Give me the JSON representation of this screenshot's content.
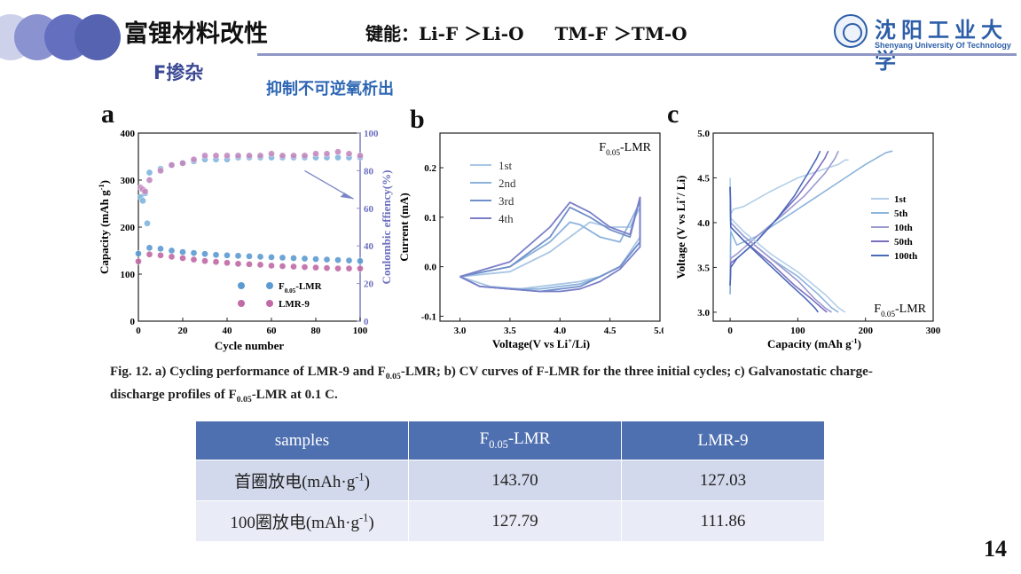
{
  "header": {
    "title": "富锂材料改性",
    "bond_label": "键能：",
    "bond_1": "Li-F ＞Li-O",
    "bond_2": "TM-F ＞TM-O",
    "subtitle": "F掺杂",
    "highlight": "抑制不可逆氧析出",
    "logo_cn": "沈阳工业大学",
    "logo_en": "Shenyang University Of Technology",
    "accent": "#5563b0"
  },
  "figure": {
    "panel_a_label": "a",
    "panel_b_label": "b",
    "panel_c_label": "c",
    "caption_line1": "Fig. 12. a) Cycling performance of LMR-9 and F0.05-LMR; b) CV curves of F-LMR for the three initial cycles; c) Galvanostatic charge-",
    "caption_line2": "discharge profiles of F0.05-LMR at 0.1 C."
  },
  "chart_data": [
    {
      "type": "scatter",
      "panel": "a",
      "xlabel": "Cycle number",
      "ylabel": "Capacity (mAh g-1)",
      "y2label": "Coulombic effiency(%)",
      "xlim": [
        0,
        100
      ],
      "ylim": [
        0,
        400
      ],
      "y2lim": [
        0,
        100
      ],
      "xticks": [
        0,
        20,
        40,
        60,
        80,
        100
      ],
      "yticks": [
        0,
        100,
        200,
        300,
        400
      ],
      "y2ticks": [
        0,
        20,
        40,
        60,
        80,
        100
      ],
      "legend_position": "bottom-right",
      "series": [
        {
          "name": "F0.05-LMR",
          "axis": "capacity",
          "color": "#5b9bd1",
          "x": [
            0,
            5,
            10,
            15,
            20,
            25,
            30,
            35,
            40,
            45,
            50,
            55,
            60,
            65,
            70,
            75,
            80,
            85,
            90,
            95,
            100
          ],
          "values": [
            143.7,
            156,
            154,
            150,
            147,
            145,
            143,
            141,
            140,
            139,
            138,
            137,
            136,
            135,
            134,
            133,
            132,
            131,
            130,
            129,
            127.79
          ]
        },
        {
          "name": "LMR-9",
          "axis": "capacity",
          "color": "#c06aa6",
          "x": [
            0,
            5,
            10,
            15,
            20,
            25,
            30,
            35,
            40,
            45,
            50,
            55,
            60,
            65,
            70,
            75,
            80,
            85,
            90,
            95,
            100
          ],
          "values": [
            127.03,
            142,
            140,
            137,
            134,
            131,
            128,
            126,
            124,
            122,
            121,
            120,
            118,
            117,
            116,
            115,
            114,
            113,
            112,
            112,
            111.86
          ]
        },
        {
          "name": "F0.05-LMR CE",
          "axis": "efficiency",
          "color": "#7fb5de",
          "x": [
            1,
            2,
            3,
            4,
            5,
            10,
            15,
            20,
            25,
            30,
            35,
            40,
            45,
            50,
            55,
            60,
            65,
            70,
            75,
            80,
            85,
            90,
            95,
            100
          ],
          "values": [
            66,
            64,
            68,
            52,
            79,
            81,
            83,
            84,
            85,
            86,
            86,
            86,
            87,
            87,
            87,
            87,
            87,
            87,
            87,
            87,
            87,
            87,
            87,
            87
          ]
        },
        {
          "name": "LMR-9 CE",
          "axis": "efficiency",
          "color": "#c48ac0",
          "x": [
            1,
            2,
            3,
            5,
            10,
            15,
            20,
            25,
            30,
            35,
            40,
            45,
            50,
            55,
            60,
            65,
            70,
            75,
            80,
            85,
            90,
            95,
            100
          ],
          "values": [
            71,
            70,
            69,
            75,
            80,
            83,
            84,
            86,
            88,
            88,
            88,
            88,
            88,
            88,
            89,
            88,
            88,
            88,
            89,
            89,
            90,
            89,
            88
          ]
        }
      ],
      "annotation": "arrow toward efficiency axis"
    },
    {
      "type": "line",
      "panel": "b",
      "title": "F0.05-LMR",
      "xlabel": "Voltage(V vs Li+/Li)",
      "ylabel": "Current (mA)",
      "xlim": [
        2.8,
        5.0
      ],
      "ylim": [
        -0.11,
        0.27
      ],
      "xticks": [
        3.0,
        3.5,
        4.0,
        4.5,
        5.0
      ],
      "yticks": [
        -0.1,
        0.0,
        0.1,
        0.2
      ],
      "legend_position": "top-left",
      "series": [
        {
          "name": "1st",
          "color": "#a9c6e4",
          "x": [
            3.0,
            3.5,
            3.9,
            4.1,
            4.3,
            4.5,
            4.7,
            4.8,
            4.8,
            4.6,
            4.4,
            4.2,
            4.0,
            3.8,
            3.6,
            3.3,
            3.0
          ],
          "values": [
            -0.02,
            -0.01,
            0.03,
            0.06,
            0.09,
            0.08,
            0.08,
            0.12,
            0.06,
            0.0,
            -0.02,
            -0.03,
            -0.035,
            -0.04,
            -0.045,
            -0.04,
            -0.02
          ]
        },
        {
          "name": "2nd",
          "color": "#8db3dc",
          "x": [
            3.0,
            3.5,
            3.9,
            4.1,
            4.2,
            4.4,
            4.6,
            4.8,
            4.8,
            4.6,
            4.4,
            4.2,
            4.0,
            3.8,
            3.5,
            3.2,
            3.0
          ],
          "values": [
            -0.02,
            0.0,
            0.05,
            0.09,
            0.085,
            0.06,
            0.05,
            0.13,
            0.05,
            0.0,
            -0.02,
            -0.035,
            -0.04,
            -0.045,
            -0.045,
            -0.04,
            -0.02
          ]
        },
        {
          "name": "3rd",
          "color": "#6f8fc9",
          "x": [
            3.0,
            3.5,
            3.9,
            4.1,
            4.3,
            4.5,
            4.7,
            4.8,
            4.8,
            4.6,
            4.4,
            4.2,
            4.0,
            3.8,
            3.5,
            3.2,
            3.0
          ],
          "values": [
            -0.02,
            0.0,
            0.06,
            0.12,
            0.1,
            0.075,
            0.06,
            0.14,
            0.05,
            0.0,
            -0.02,
            -0.04,
            -0.045,
            -0.05,
            -0.045,
            -0.04,
            -0.02
          ]
        },
        {
          "name": "4th",
          "color": "#7a7fc8",
          "x": [
            3.0,
            3.5,
            3.9,
            4.1,
            4.3,
            4.5,
            4.7,
            4.8,
            4.8,
            4.6,
            4.4,
            4.2,
            4.0,
            3.8,
            3.5,
            3.2,
            3.0
          ],
          "values": [
            -0.02,
            0.01,
            0.08,
            0.13,
            0.11,
            0.08,
            0.065,
            0.14,
            0.04,
            -0.005,
            -0.03,
            -0.045,
            -0.05,
            -0.05,
            -0.045,
            -0.04,
            -0.02
          ]
        }
      ]
    },
    {
      "type": "line",
      "panel": "c",
      "title": "F0.05-LMR",
      "xlabel": "Capacity (mAh g-1)",
      "ylabel": "Voltage (V vs Li+/ Li)",
      "xlim": [
        -25,
        300
      ],
      "ylim": [
        2.9,
        5.0
      ],
      "xticks": [
        0,
        100,
        200,
        300
      ],
      "yticks": [
        3.0,
        3.5,
        4.0,
        4.5,
        5.0
      ],
      "legend_position": "right",
      "series": [
        {
          "name": "1st",
          "color": "#b3cfe9",
          "x": [
            0,
            1,
            5,
            20,
            60,
            100,
            140,
            160,
            170,
            175
          ],
          "values": [
            3.2,
            4.1,
            4.15,
            4.18,
            4.35,
            4.5,
            4.6,
            4.65,
            4.7,
            4.7
          ]
        },
        {
          "name": "5th",
          "color": "#8db3dc",
          "x": [
            0,
            1,
            10,
            40,
            80,
            120,
            160,
            200,
            230,
            240
          ],
          "values": [
            3.2,
            3.9,
            3.75,
            3.85,
            4.05,
            4.25,
            4.45,
            4.65,
            4.78,
            4.8
          ]
        },
        {
          "name": "10th",
          "color": "#9a9ad0",
          "x": [
            0,
            1,
            10,
            40,
            80,
            110,
            140,
            155,
            160
          ],
          "values": [
            3.3,
            3.6,
            3.65,
            3.85,
            4.1,
            4.3,
            4.55,
            4.72,
            4.8
          ]
        },
        {
          "name": "50th",
          "color": "#7a6fbf",
          "x": [
            0,
            1,
            10,
            40,
            70,
            100,
            125,
            140,
            145
          ],
          "values": [
            3.3,
            3.55,
            3.6,
            3.8,
            4.05,
            4.3,
            4.55,
            4.72,
            4.8
          ]
        },
        {
          "name": "100th",
          "color": "#4a6ab8",
          "x": [
            0,
            1,
            10,
            40,
            70,
            95,
            115,
            128,
            133
          ],
          "values": [
            3.3,
            3.5,
            3.6,
            3.8,
            4.05,
            4.3,
            4.55,
            4.72,
            4.8
          ]
        },
        {
          "name": "1st discharge",
          "color": "#b3cfe9",
          "x": [
            0,
            1,
            20,
            60,
            100,
            140,
            160,
            170
          ],
          "values": [
            4.5,
            4.05,
            3.9,
            3.65,
            3.45,
            3.2,
            3.05,
            3.0
          ]
        },
        {
          "name": "5th discharge",
          "color": "#8db3dc",
          "x": [
            0,
            1,
            20,
            60,
            100,
            130,
            150,
            160
          ],
          "values": [
            4.4,
            4.0,
            3.85,
            3.6,
            3.4,
            3.2,
            3.05,
            3.0
          ]
        },
        {
          "name": "10th discharge",
          "color": "#9a9ad0",
          "x": [
            0,
            1,
            20,
            60,
            100,
            125,
            140,
            150
          ],
          "values": [
            4.4,
            4.0,
            3.85,
            3.6,
            3.35,
            3.15,
            3.05,
            3.0
          ]
        },
        {
          "name": "50th discharge",
          "color": "#7a6fbf",
          "x": [
            0,
            1,
            20,
            60,
            95,
            120,
            135,
            143
          ],
          "values": [
            4.4,
            3.95,
            3.8,
            3.55,
            3.3,
            3.15,
            3.05,
            3.0
          ]
        },
        {
          "name": "100th discharge",
          "color": "#4a6ab8",
          "x": [
            0,
            1,
            20,
            55,
            90,
            112,
            125,
            130
          ],
          "values": [
            4.4,
            3.95,
            3.8,
            3.55,
            3.3,
            3.15,
            3.05,
            3.0
          ]
        }
      ]
    }
  ],
  "table": {
    "headers": [
      "samples",
      "F0.05-LMR",
      "LMR-9"
    ],
    "rows": [
      {
        "label": "首圈放电(mAh·g-1)",
        "f_value": "143.70",
        "lmr_value": "127.03"
      },
      {
        "label": "100圈放电(mAh·g-1)",
        "f_value": "127.79",
        "lmr_value": "111.86"
      }
    ]
  },
  "page_number": "14"
}
